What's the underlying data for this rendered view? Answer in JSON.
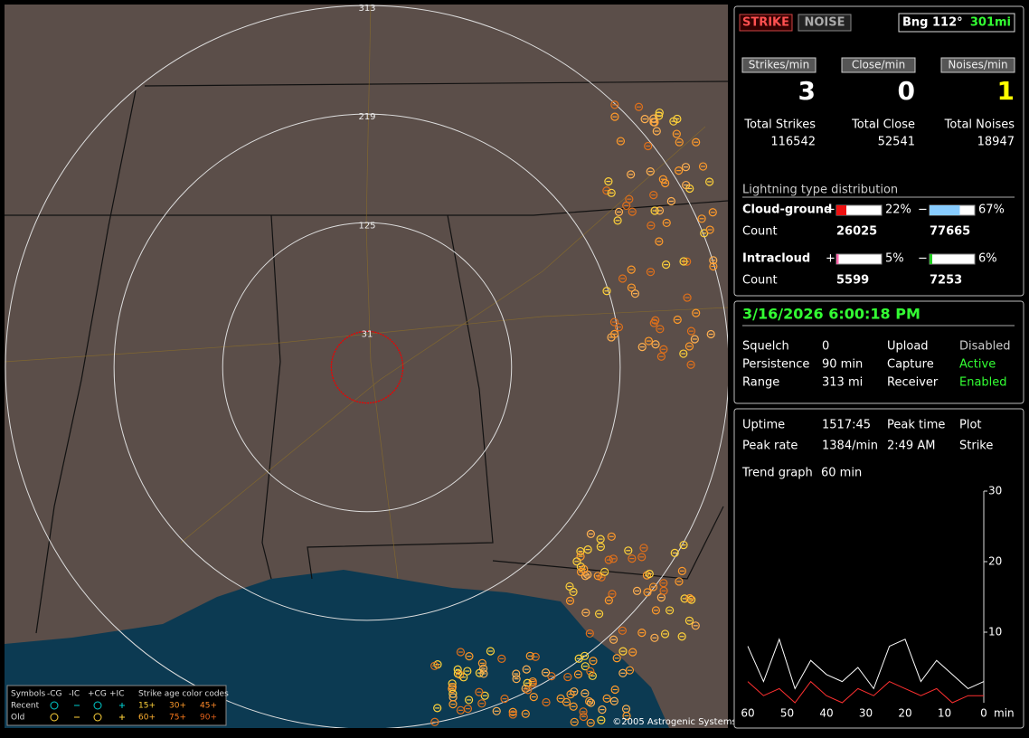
{
  "map": {
    "range_rings": [
      313,
      219,
      125,
      31
    ]
  },
  "legend": {
    "symbols": "Symbols",
    "minus_cg": "-CG",
    "minus_ic": "-IC",
    "plus_cg": "+CG",
    "plus_ic": "+IC",
    "age_title": "Strike age color codes",
    "recent": "Recent",
    "old": "Old",
    "ages_recent": [
      "15+",
      "30+",
      "45+"
    ],
    "ages_old": [
      "60+",
      "75+",
      "90+"
    ]
  },
  "copyright": "©2005 Astrogenic Systems",
  "header": {
    "strike_button": "STRIKE",
    "noise_button": "NOISE",
    "bearing": "Bng 112°",
    "distance": "301mi"
  },
  "rates": [
    {
      "label": "Strikes/min",
      "value": 3
    },
    {
      "label": "Close/min",
      "value": 0
    },
    {
      "label": "Noises/min",
      "value": 1
    }
  ],
  "totals": [
    {
      "label": "Total Strikes",
      "value": 116542
    },
    {
      "label": "Total Close",
      "value": 52541
    },
    {
      "label": "Total Noises",
      "value": 18947
    }
  ],
  "distribution": {
    "title": "Lightning type distribution",
    "count_label": "Count",
    "plus_sign": "+",
    "minus_sign": "−",
    "rows": [
      {
        "name": "Cloud-ground",
        "plus": {
          "value": 22,
          "label": "22%"
        },
        "minus": {
          "value": 67,
          "label": "67%"
        },
        "plus_count": 26025,
        "minus_count": 77665
      },
      {
        "name": "Intracloud",
        "plus": {
          "value": 5,
          "label": "5%"
        },
        "minus": {
          "value": 6,
          "label": "6%"
        },
        "plus_count": 5599,
        "minus_count": 7253
      }
    ]
  },
  "status": {
    "datetime": "3/16/2026 6:00:18 PM",
    "rows": [
      [
        "Squelch",
        "0",
        "Upload",
        "Disabled"
      ],
      [
        "Persistence",
        "90 min",
        "Capture",
        "Active"
      ],
      [
        "Range",
        "313 mi",
        "Receiver",
        "Enabled"
      ]
    ]
  },
  "stats": {
    "rows": [
      [
        "Uptime",
        "1517:45",
        "Peak time",
        "Plot"
      ],
      [
        "Peak rate",
        "1384/min",
        "2:49 AM",
        "Strike"
      ]
    ],
    "trend_label": "Trend graph",
    "trend_window": "60 min"
  },
  "trend": {
    "ylim": [
      0,
      30
    ],
    "yticks": [
      10,
      20,
      30
    ],
    "xlim": [
      60,
      0
    ],
    "xticks": [
      60,
      50,
      40,
      30,
      20,
      10,
      0
    ],
    "x_unit": "min",
    "x": [
      60,
      56,
      52,
      48,
      44,
      40,
      36,
      32,
      28,
      24,
      20,
      16,
      12,
      8,
      4,
      0
    ],
    "series": [
      {
        "color": "#ffffff",
        "values": [
          8,
          3,
          9,
          2,
          6,
          4,
          3,
          5,
          2,
          8,
          9,
          3,
          6,
          4,
          2,
          3
        ]
      },
      {
        "color": "#ff3030",
        "values": [
          3,
          1,
          2,
          0,
          3,
          1,
          0,
          2,
          1,
          3,
          2,
          1,
          2,
          0,
          1,
          1
        ]
      }
    ]
  }
}
